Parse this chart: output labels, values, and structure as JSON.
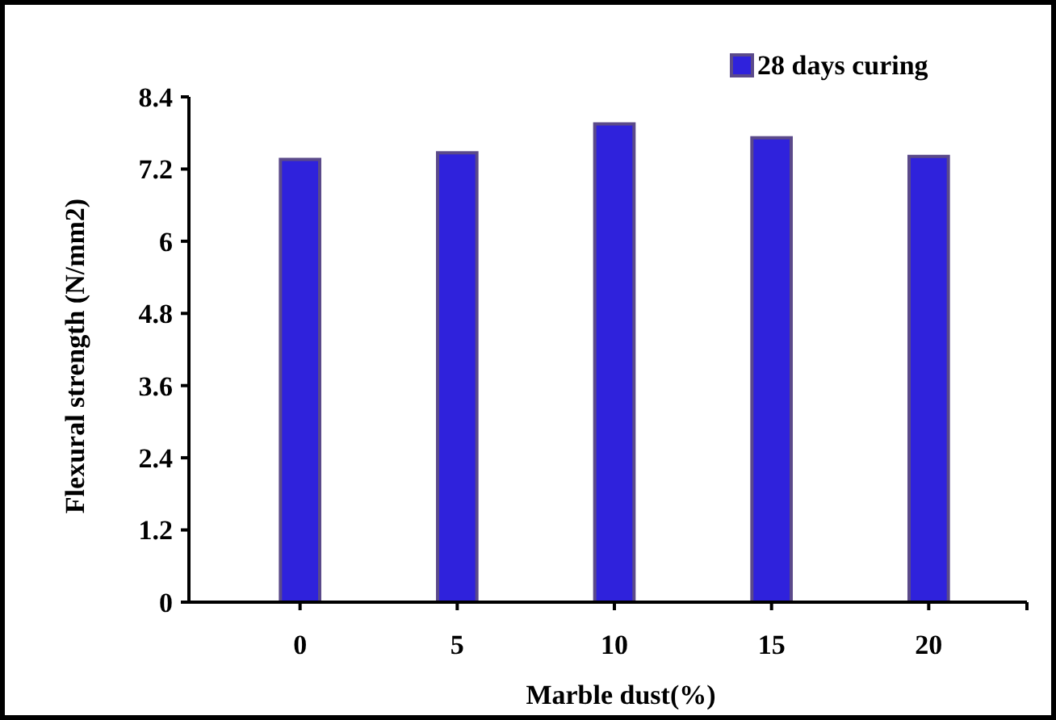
{
  "chart_data": {
    "type": "bar",
    "xlabel": "Marble dust(%)",
    "ylabel": "Flexural strength (N/mm2)",
    "categories": [
      "0",
      "5",
      "10",
      "15",
      "20"
    ],
    "series": [
      {
        "name": "28 days curing",
        "color": "#2f22dc",
        "values": [
          7.36,
          7.47,
          7.95,
          7.72,
          7.41
        ]
      }
    ],
    "ylim": [
      0,
      8.4
    ],
    "yticks": [
      0,
      1.2,
      2.4,
      3.6,
      4.8,
      6,
      7.2,
      8.4
    ],
    "grid": false,
    "legend": "top right"
  }
}
